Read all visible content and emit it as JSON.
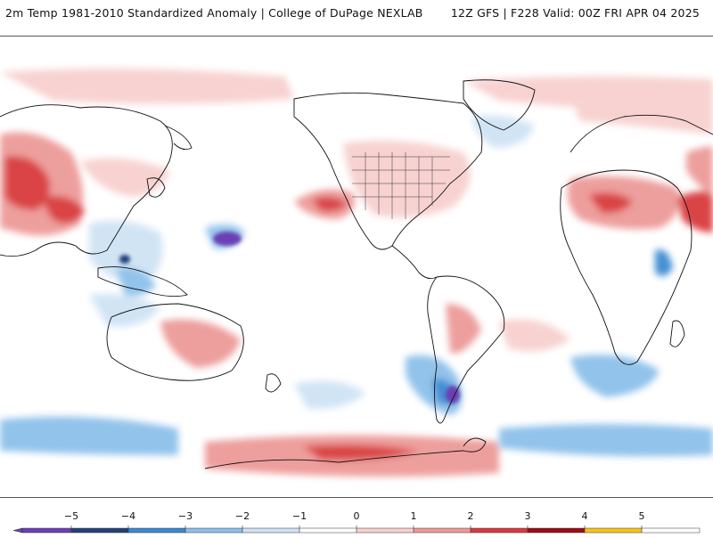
{
  "header": {
    "left_title": "2m Temp 1981-2010 Standardized Anomaly | College of DuPage NEXLAB",
    "right_title": "12Z GFS | F228 Valid: 00Z FRI APR 04 2025"
  },
  "map": {
    "projection": "global equirectangular, centered on the Pacific",
    "field": "2m temperature standardized anomaly"
  },
  "colorbar": {
    "tick_labels": [
      "−5",
      "−4",
      "−3",
      "−2",
      "−1",
      "0",
      "1",
      "2",
      "3",
      "4",
      "5"
    ],
    "colors": [
      "#6a3fb4",
      "#24407a",
      "#3b89d2",
      "#8cc0ea",
      "#cfe3f4",
      "#ffffff",
      "#f7d0cf",
      "#ec9a97",
      "#d93a3e",
      "#9b0c14",
      "#f5c417"
    ]
  }
}
